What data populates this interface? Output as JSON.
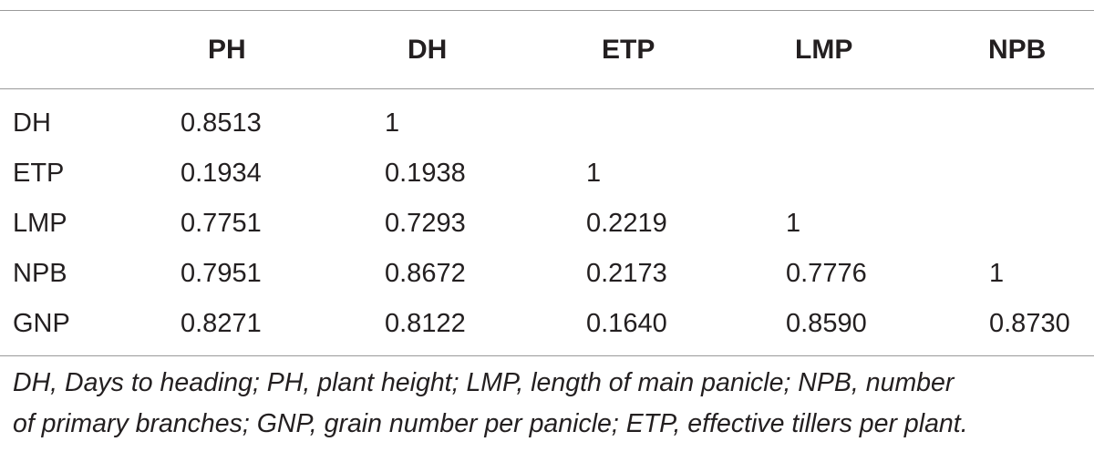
{
  "table": {
    "columns": [
      "",
      "PH",
      "DH",
      "ETP",
      "LMP",
      "NPB"
    ],
    "rows": [
      {
        "label": "DH",
        "values": [
          "0.8513",
          "1",
          "",
          "",
          ""
        ]
      },
      {
        "label": "ETP",
        "values": [
          "0.1934",
          "0.1938",
          "1",
          "",
          ""
        ]
      },
      {
        "label": "LMP",
        "values": [
          "0.7751",
          "0.7293",
          "0.2219",
          "1",
          ""
        ]
      },
      {
        "label": "NPB",
        "values": [
          "0.7951",
          "0.8672",
          "0.2173",
          "0.7776",
          "1"
        ]
      },
      {
        "label": "GNP",
        "values": [
          "0.8271",
          "0.8122",
          "0.1640",
          "0.8590",
          "0.8730"
        ]
      }
    ]
  },
  "footnote": {
    "line1": "DH, Days to heading; PH, plant height; LMP, length of main panicle; NPB, number",
    "line2": "of primary branches; GNP, grain number per panicle; ETP, effective tillers per plant."
  }
}
